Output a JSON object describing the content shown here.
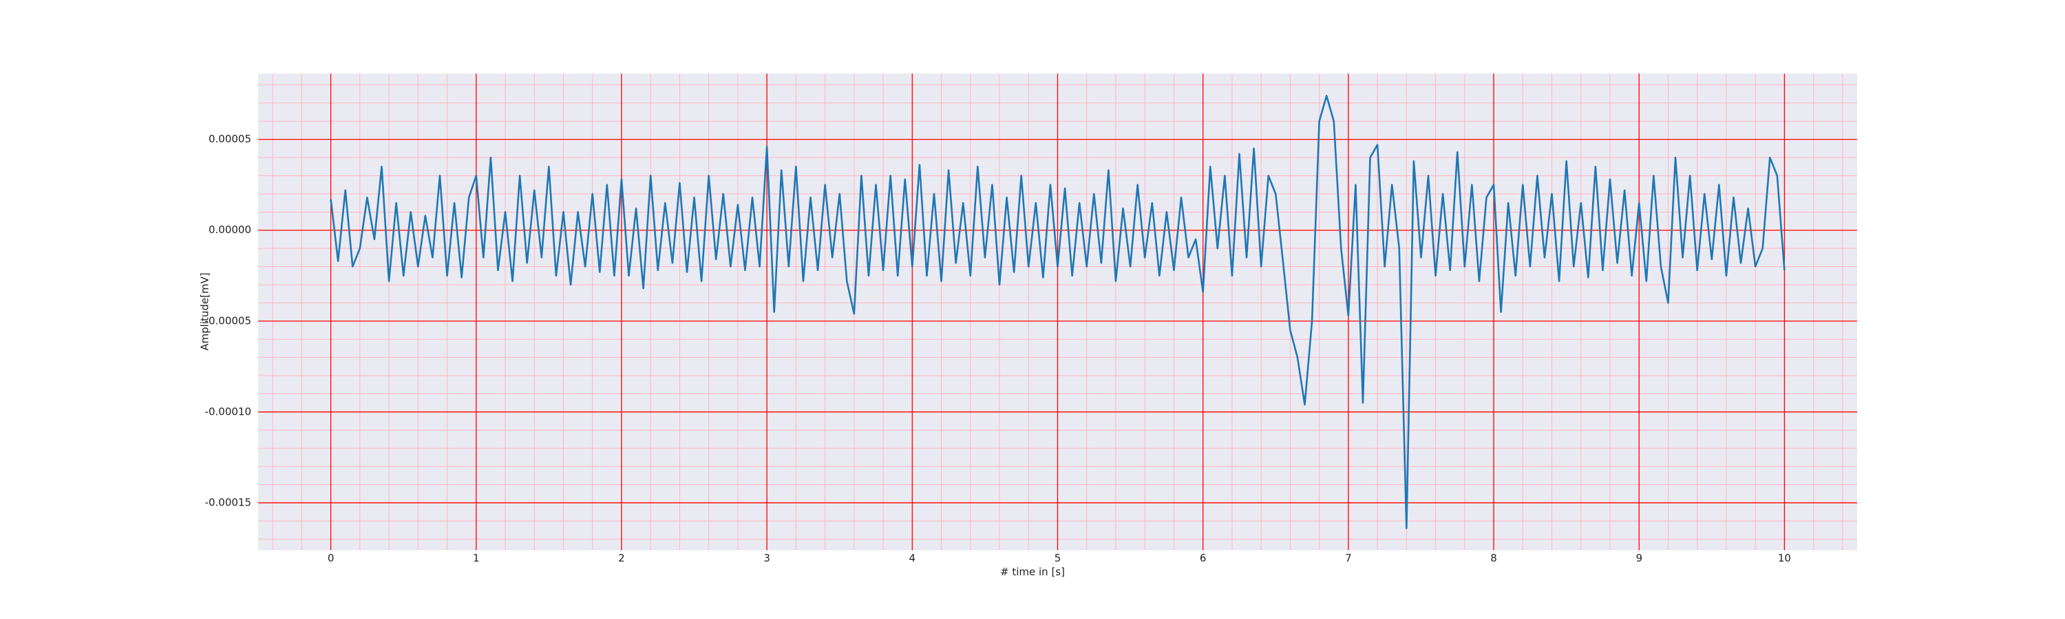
{
  "chart_data": {
    "type": "line",
    "xlabel": "# time in [s]",
    "ylabel": "Amplitude[mV]",
    "x": [
      0,
      0.05,
      0.1,
      0.15,
      0.2,
      0.25,
      0.3,
      0.35,
      0.4,
      0.45,
      0.5,
      0.55,
      0.6,
      0.65,
      0.7,
      0.75,
      0.8,
      0.85,
      0.9,
      0.95,
      1,
      1.05,
      1.1,
      1.15,
      1.2,
      1.25,
      1.3,
      1.35,
      1.4,
      1.45,
      1.5,
      1.55,
      1.6,
      1.65,
      1.7,
      1.75,
      1.8,
      1.85,
      1.9,
      1.95,
      2,
      2.05,
      2.1,
      2.15,
      2.2,
      2.25,
      2.3,
      2.35,
      2.4,
      2.45,
      2.5,
      2.55,
      2.6,
      2.65,
      2.7,
      2.75,
      2.8,
      2.85,
      2.9,
      2.95,
      3,
      3.05,
      3.1,
      3.15,
      3.2,
      3.25,
      3.3,
      3.35,
      3.4,
      3.45,
      3.5,
      3.55,
      3.6,
      3.65,
      3.7,
      3.75,
      3.8,
      3.85,
      3.9,
      3.95,
      4,
      4.05,
      4.1,
      4.15,
      4.2,
      4.25,
      4.3,
      4.35,
      4.4,
      4.45,
      4.5,
      4.55,
      4.6,
      4.65,
      4.7,
      4.75,
      4.8,
      4.85,
      4.9,
      4.95,
      5,
      5.05,
      5.1,
      5.15,
      5.2,
      5.25,
      5.3,
      5.35,
      5.4,
      5.45,
      5.5,
      5.55,
      5.6,
      5.65,
      5.7,
      5.75,
      5.8,
      5.85,
      5.9,
      5.95,
      6,
      6.05,
      6.1,
      6.15,
      6.2,
      6.25,
      6.3,
      6.35,
      6.4,
      6.45,
      6.5,
      6.55,
      6.6,
      6.65,
      6.7,
      6.75,
      6.8,
      6.85,
      6.9,
      6.95,
      7,
      7.05,
      7.1,
      7.15,
      7.2,
      7.25,
      7.3,
      7.35,
      7.4,
      7.45,
      7.5,
      7.55,
      7.6,
      7.65,
      7.7,
      7.75,
      7.8,
      7.85,
      7.9,
      7.95,
      8,
      8.05,
      8.1,
      8.15,
      8.2,
      8.25,
      8.3,
      8.35,
      8.4,
      8.45,
      8.5,
      8.55,
      8.6,
      8.65,
      8.7,
      8.75,
      8.8,
      8.85,
      8.9,
      8.95,
      9,
      9.05,
      9.1,
      9.15,
      9.2,
      9.25,
      9.3,
      9.35,
      9.4,
      9.45,
      9.5,
      9.55,
      9.6,
      9.65,
      9.7,
      9.75,
      9.8,
      9.85,
      9.9,
      9.95,
      10
    ],
    "values": [
      1.7e-05,
      -1.7e-05,
      2.2e-05,
      -2e-05,
      -1e-05,
      1.8e-05,
      -5e-06,
      3.5e-05,
      -2.8e-05,
      1.5e-05,
      -2.5e-05,
      1e-05,
      -2e-05,
      8e-06,
      -1.5e-05,
      3e-05,
      -2.5e-05,
      1.5e-05,
      -2.6e-05,
      1.8e-05,
      3e-05,
      -1.5e-05,
      4e-05,
      -2.2e-05,
      1e-05,
      -2.8e-05,
      3e-05,
      -1.8e-05,
      2.2e-05,
      -1.5e-05,
      3.5e-05,
      -2.5e-05,
      1e-05,
      -3e-05,
      1e-05,
      -2e-05,
      2e-05,
      -2.3e-05,
      2.5e-05,
      -2.5e-05,
      2.8e-05,
      -2.5e-05,
      1.2e-05,
      -3.2e-05,
      3e-05,
      -2.2e-05,
      1.5e-05,
      -1.8e-05,
      2.6e-05,
      -2.3e-05,
      1.8e-05,
      -2.8e-05,
      3e-05,
      -1.6e-05,
      2e-05,
      -2e-05,
      1.4e-05,
      -2.2e-05,
      1.8e-05,
      -2e-05,
      4.6e-05,
      -4.5e-05,
      3.3e-05,
      -2e-05,
      3.5e-05,
      -2.8e-05,
      1.8e-05,
      -2.2e-05,
      2.5e-05,
      -1.5e-05,
      2e-05,
      -2.8e-05,
      -4.6e-05,
      3e-05,
      -2.5e-05,
      2.5e-05,
      -2.2e-05,
      3e-05,
      -2.5e-05,
      2.8e-05,
      -2e-05,
      3.6e-05,
      -2.5e-05,
      2e-05,
      -2.8e-05,
      3.3e-05,
      -1.8e-05,
      1.5e-05,
      -2.5e-05,
      3.5e-05,
      -1.5e-05,
      2.5e-05,
      -3e-05,
      1.8e-05,
      -2.3e-05,
      3e-05,
      -2e-05,
      1.5e-05,
      -2.6e-05,
      2.5e-05,
      -2e-05,
      2.3e-05,
      -2.5e-05,
      1.5e-05,
      -2e-05,
      2e-05,
      -1.8e-05,
      3.3e-05,
      -2.8e-05,
      1.2e-05,
      -2e-05,
      2.5e-05,
      -1.5e-05,
      1.5e-05,
      -2.5e-05,
      1e-05,
      -2.2e-05,
      1.8e-05,
      -1.5e-05,
      -5e-06,
      -3.4e-05,
      3.5e-05,
      -1e-05,
      3e-05,
      -2.5e-05,
      4.2e-05,
      -1.5e-05,
      4.5e-05,
      -2e-05,
      3e-05,
      2e-05,
      -1.7e-05,
      -5.5e-05,
      -7e-05,
      -9.6e-05,
      -5e-05,
      6e-05,
      7.4e-05,
      6e-05,
      -1e-05,
      -4.7e-05,
      2.5e-05,
      -9.5e-05,
      4e-05,
      4.7e-05,
      -2e-05,
      2.5e-05,
      -1e-05,
      -0.000164,
      3.8e-05,
      -1.5e-05,
      3e-05,
      -2.5e-05,
      2e-05,
      -2.2e-05,
      4.3e-05,
      -2e-05,
      2.5e-05,
      -2.8e-05,
      1.8e-05,
      2.5e-05,
      -4.5e-05,
      1.5e-05,
      -2.5e-05,
      2.5e-05,
      -2e-05,
      3e-05,
      -1.5e-05,
      2e-05,
      -2.8e-05,
      3.8e-05,
      -2e-05,
      1.5e-05,
      -2.6e-05,
      3.5e-05,
      -2.2e-05,
      2.8e-05,
      -1.8e-05,
      2.2e-05,
      -2.5e-05,
      1.5e-05,
      -2.8e-05,
      3e-05,
      -2e-05,
      -4e-05,
      4e-05,
      -1.5e-05,
      3e-05,
      -2.2e-05,
      2e-05,
      -1.6e-05,
      2.5e-05,
      -2.5e-05,
      1.8e-05,
      -1.8e-05,
      1.2e-05,
      -2e-05,
      -1e-05,
      4e-05,
      3e-05,
      -2.2e-05
    ],
    "color": "#1f77b4",
    "xlim": [
      -0.5,
      10.5
    ],
    "xticks": [
      0,
      1,
      2,
      3,
      4,
      5,
      6,
      7,
      8,
      9,
      10
    ],
    "ylim": [
      -0.0001761,
      8.62e-05
    ],
    "yticks": [
      -0.00015,
      {
        "value": -0.0001,
        "label": "-0.00010"
      },
      -5e-05,
      {
        "value": 0,
        "label": "0.00000"
      },
      5e-05
    ],
    "grid": true,
    "grid_color": "#ff0000",
    "minor_grid_color": "#ffb6c1",
    "minor_grid_divisions": 5,
    "background": "#eaeaf2"
  }
}
